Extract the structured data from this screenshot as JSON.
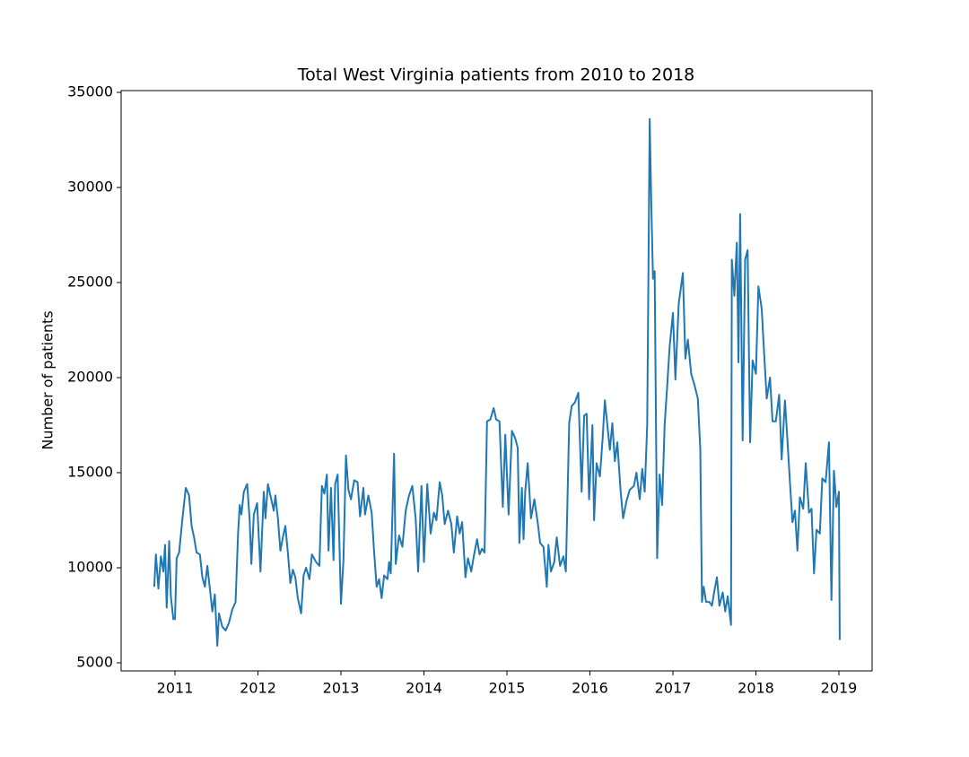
{
  "chart_data": {
    "type": "line",
    "title": "Total West Virginia patients from 2010 to 2018",
    "y_label": "Number of patients",
    "color": "#1f77b4",
    "xlim": [
      2010.351,
      2019.4
    ],
    "xticks": [
      2011,
      2012,
      2013,
      2014,
      2015,
      2016,
      2017,
      2018,
      2019
    ],
    "ylim": [
      4575,
      35094
    ],
    "yticks": [
      5000,
      10000,
      15000,
      20000,
      25000,
      30000,
      35000
    ],
    "x": [
      2010.75,
      2010.77,
      2010.8,
      2010.83,
      2010.86,
      2010.88,
      2010.9,
      2010.93,
      2010.95,
      2010.98,
      2011.0,
      2011.02,
      2011.05,
      2011.09,
      2011.13,
      2011.17,
      2011.2,
      2011.23,
      2011.26,
      2011.3,
      2011.33,
      2011.36,
      2011.39,
      2011.42,
      2011.45,
      2011.48,
      2011.51,
      2011.53,
      2011.57,
      2011.61,
      2011.65,
      2011.69,
      2011.73,
      2011.76,
      2011.78,
      2011.8,
      2011.83,
      2011.87,
      2011.9,
      2011.92,
      2011.95,
      2011.99,
      2012.03,
      2012.07,
      2012.09,
      2012.12,
      2012.16,
      2012.19,
      2012.21,
      2012.24,
      2012.27,
      2012.3,
      2012.33,
      2012.36,
      2012.39,
      2012.42,
      2012.45,
      2012.48,
      2012.52,
      2012.55,
      2012.58,
      2012.62,
      2012.65,
      2012.7,
      2012.74,
      2012.77,
      2012.8,
      2012.83,
      2012.85,
      2012.88,
      2012.91,
      2012.93,
      2012.96,
      2013.0,
      2013.03,
      2013.06,
      2013.09,
      2013.12,
      2013.16,
      2013.2,
      2013.23,
      2013.27,
      2013.29,
      2013.33,
      2013.37,
      2013.4,
      2013.43,
      2013.46,
      2013.49,
      2013.52,
      2013.56,
      2013.58,
      2013.6,
      2013.64,
      2013.66,
      2013.7,
      2013.74,
      2013.78,
      2013.82,
      2013.86,
      2013.9,
      2013.93,
      2013.97,
      2014.0,
      2014.04,
      2014.08,
      2014.12,
      2014.15,
      2014.19,
      2014.22,
      2014.25,
      2014.29,
      2014.33,
      2014.36,
      2014.4,
      2014.43,
      2014.46,
      2014.5,
      2014.53,
      2014.57,
      2014.6,
      2014.64,
      2014.67,
      2014.7,
      2014.73,
      2014.76,
      2014.8,
      2014.84,
      2014.87,
      2014.91,
      2014.95,
      2014.98,
      2015.02,
      2015.06,
      2015.1,
      2015.13,
      2015.15,
      2015.18,
      2015.2,
      2015.22,
      2015.25,
      2015.29,
      2015.33,
      2015.37,
      2015.4,
      2015.44,
      2015.48,
      2015.5,
      2015.53,
      2015.57,
      2015.6,
      2015.64,
      2015.68,
      2015.71,
      2015.75,
      2015.78,
      2015.82,
      2015.86,
      2015.9,
      2015.93,
      2015.96,
      2015.99,
      2016.03,
      2016.05,
      2016.08,
      2016.12,
      2016.15,
      2016.18,
      2016.21,
      2016.24,
      2016.27,
      2016.3,
      2016.33,
      2016.37,
      2016.4,
      2016.44,
      2016.48,
      2016.53,
      2016.56,
      2016.6,
      2016.63,
      2016.66,
      2016.69,
      2016.72,
      2016.74,
      2016.76,
      2016.78,
      2016.81,
      2016.84,
      2016.87,
      2016.9,
      2016.93,
      2016.96,
      2017.0,
      2017.03,
      2017.07,
      2017.12,
      2017.15,
      2017.18,
      2017.22,
      2017.26,
      2017.3,
      2017.33,
      2017.35,
      2017.37,
      2017.4,
      2017.44,
      2017.47,
      2017.5,
      2017.53,
      2017.56,
      2017.6,
      2017.63,
      2017.66,
      2017.7,
      2017.71,
      2017.74,
      2017.77,
      2017.79,
      2017.81,
      2017.84,
      2017.87,
      2017.9,
      2017.93,
      2017.96,
      2018.0,
      2018.03,
      2018.07,
      2018.1,
      2018.13,
      2018.17,
      2018.2,
      2018.24,
      2018.28,
      2018.31,
      2018.35,
      2018.38,
      2018.41,
      2018.44,
      2018.47,
      2018.5,
      2018.53,
      2018.57,
      2018.6,
      2018.64,
      2018.67,
      2018.7,
      2018.73,
      2018.77,
      2018.8,
      2018.84,
      2018.88,
      2018.91,
      2018.94,
      2018.97,
      2019.0,
      2019.01
    ],
    "values": [
      9000,
      10700,
      8900,
      10600,
      9800,
      11200,
      7900,
      11400,
      8500,
      7300,
      7300,
      10500,
      10800,
      12600,
      14200,
      13800,
      12200,
      11600,
      10800,
      10700,
      9500,
      9000,
      10100,
      8900,
      7700,
      8600,
      5900,
      7600,
      6900,
      6700,
      7100,
      7800,
      8200,
      11800,
      13300,
      12800,
      14000,
      14400,
      12500,
      10200,
      12800,
      13400,
      9800,
      14000,
      12600,
      14400,
      13600,
      13000,
      13800,
      12600,
      10900,
      11600,
      12200,
      10800,
      9200,
      9900,
      9500,
      8400,
      7600,
      9600,
      10000,
      9400,
      10700,
      10300,
      10100,
      14300,
      13900,
      14900,
      10900,
      14200,
      10400,
      14400,
      14900,
      8100,
      10400,
      15900,
      14100,
      13600,
      14600,
      14500,
      12700,
      14200,
      12800,
      13800,
      12900,
      10800,
      9000,
      9400,
      8400,
      9600,
      9400,
      10300,
      9700,
      16000,
      10200,
      11700,
      11100,
      13000,
      13800,
      14300,
      12600,
      9800,
      14300,
      10300,
      14400,
      11800,
      12900,
      12500,
      14500,
      13800,
      12300,
      13000,
      12300,
      10800,
      12700,
      11800,
      12400,
      9500,
      10500,
      9800,
      10600,
      11500,
      10700,
      11000,
      10800,
      17700,
      17800,
      18400,
      17800,
      17700,
      13200,
      17000,
      12800,
      17200,
      16800,
      16300,
      11300,
      14200,
      11500,
      14000,
      15500,
      12600,
      13600,
      12400,
      11300,
      11100,
      9000,
      11200,
      9800,
      10300,
      11600,
      10100,
      10600,
      9800,
      17600,
      18500,
      18700,
      19200,
      14000,
      18000,
      18100,
      13600,
      17500,
      12500,
      15500,
      14800,
      16600,
      18800,
      17500,
      16200,
      17600,
      15600,
      16600,
      14000,
      12600,
      13500,
      14100,
      14300,
      15000,
      13600,
      15200,
      14000,
      17500,
      33600,
      29000,
      25200,
      25600,
      10500,
      14900,
      13300,
      17500,
      19500,
      21600,
      23400,
      19900,
      23900,
      25500,
      21000,
      22000,
      20200,
      19600,
      18900,
      16200,
      8200,
      9000,
      8200,
      8200,
      8000,
      8800,
      9500,
      8000,
      8700,
      7700,
      8500,
      7000,
      26200,
      24300,
      27100,
      20800,
      28600,
      16700,
      26200,
      26700,
      16600,
      20900,
      20200,
      24800,
      23600,
      21200,
      18900,
      20000,
      17700,
      17700,
      19100,
      15700,
      18800,
      16700,
      14500,
      12400,
      13000,
      10900,
      13700,
      13100,
      15500,
      12900,
      13100,
      9700,
      12000,
      11800,
      14700,
      14500,
      16600,
      8300,
      15100,
      13200,
      14000,
      6200
    ]
  }
}
